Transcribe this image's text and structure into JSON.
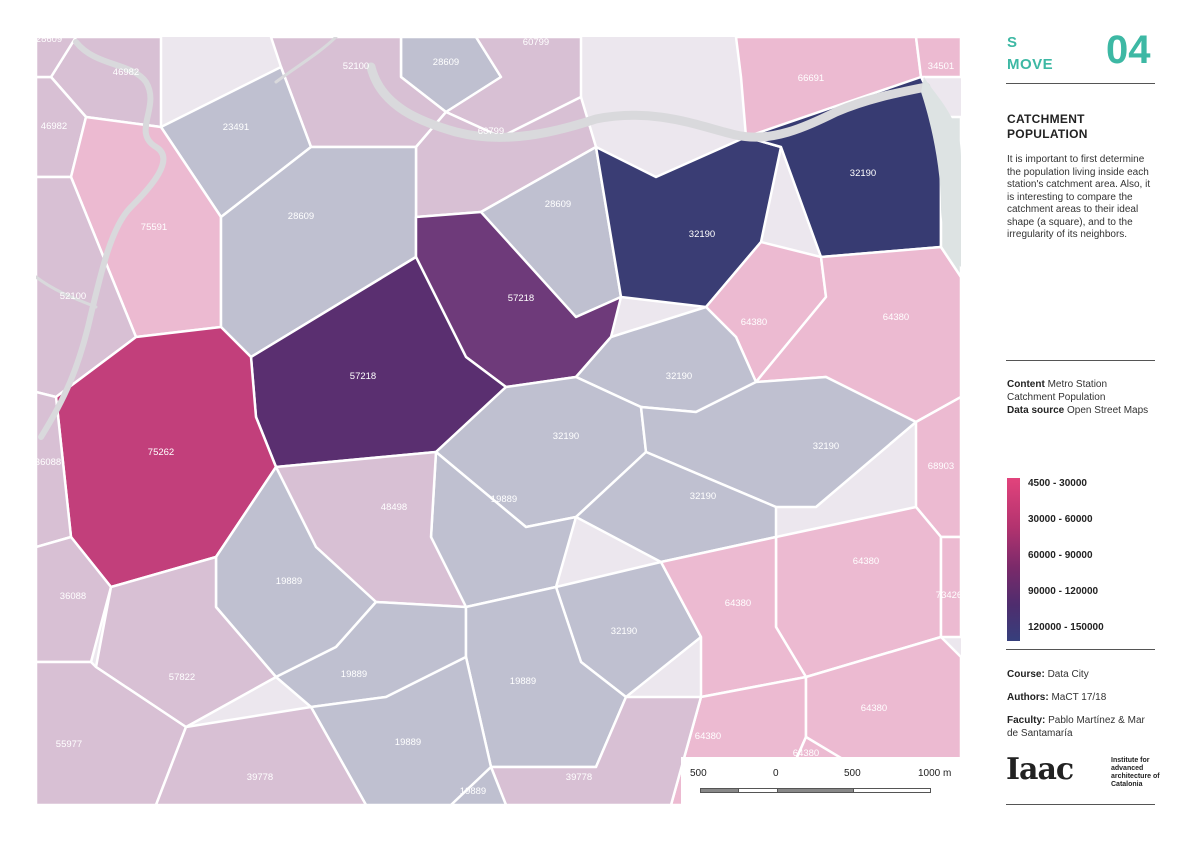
{
  "header": {
    "brand_line1": "S",
    "brand_line2": "MOVE",
    "page_number": "04"
  },
  "section": {
    "title": "CATCHMENT POPULATION",
    "description": "It is important to first determine the population living inside each station's catchment area. Also, it is interesting to compare the catchment areas to their ideal shape (a square), and to the irregularity of its neighbors."
  },
  "meta": {
    "content_label": "Content",
    "content_value": "Metro Station Catchment Population",
    "source_label": "Data source",
    "source_value": "Open Street Maps"
  },
  "legend": {
    "items": [
      "4500 - 30000",
      "30000 - 60000",
      "60000 - 90000",
      "90000 - 120000",
      "120000 - 150000"
    ],
    "colors": [
      "#e2437c",
      "#b3336f",
      "#7a2a6a",
      "#4e2d6e",
      "#363f7c"
    ]
  },
  "credits": {
    "course_label": "Course:",
    "course_value": "Data City",
    "authors_label": "Authors:",
    "authors_value": "MaCT 17/18",
    "faculty_label": "Faculty:",
    "faculty_value": "Pablo Martínez & Mar de Santamaría"
  },
  "logo": {
    "mark": "Iaac",
    "text": "Institute for advanced architecture of Catalonia"
  },
  "scale": {
    "labels": [
      "500",
      "0",
      "500",
      "1000 m"
    ]
  },
  "map": {
    "cells": [
      {
        "label": "28609",
        "fill": "#bfc0d0"
      },
      {
        "label": "52100",
        "fill": "#d8c0d4"
      },
      {
        "label": "23491",
        "fill": "#bfc0d0"
      },
      {
        "label": "46982",
        "fill": "#d8c0d4"
      },
      {
        "label": "46982",
        "fill": "#d8c0d4"
      },
      {
        "label": "60799",
        "fill": "#d8c0d4"
      },
      {
        "label": "60799",
        "fill": "#d8c0d4"
      },
      {
        "label": "66691",
        "fill": "#ecbad1"
      },
      {
        "label": "34501",
        "fill": "#ecbad1"
      },
      {
        "label": "75591",
        "fill": "#ecbad1"
      },
      {
        "label": "28609",
        "fill": "#bfc0d0"
      },
      {
        "label": "28609",
        "fill": "#bfc0d0"
      },
      {
        "label": "52100",
        "fill": "#d8c0d4"
      },
      {
        "label": "57218",
        "fill": "#6e3a7a"
      },
      {
        "label": "57218",
        "fill": "#5a2f70"
      },
      {
        "label": "32190",
        "fill": "#3a3d74"
      },
      {
        "label": "32190",
        "fill": "#373b72"
      },
      {
        "label": "75262",
        "fill": "#c23f7b"
      },
      {
        "label": "64380",
        "fill": "#ecbad1"
      },
      {
        "label": "64380",
        "fill": "#ecbad1"
      },
      {
        "label": "32190",
        "fill": "#bfc0d0"
      },
      {
        "label": "32190",
        "fill": "#bfc0d0"
      },
      {
        "label": "32190",
        "fill": "#bfc0d0"
      },
      {
        "label": "32190",
        "fill": "#bfc0d0"
      },
      {
        "label": "19889",
        "fill": "#bfc0d0"
      },
      {
        "label": "48498",
        "fill": "#d8c0d4"
      },
      {
        "label": "68903",
        "fill": "#ecbad1"
      },
      {
        "label": "36088",
        "fill": "#d8c0d4"
      },
      {
        "label": "36088",
        "fill": "#d8c0d4"
      },
      {
        "label": "19889",
        "fill": "#bfc0d0"
      },
      {
        "label": "32190",
        "fill": "#bfc0d0"
      },
      {
        "label": "64380",
        "fill": "#ecbad1"
      },
      {
        "label": "64380",
        "fill": "#ecbad1"
      },
      {
        "label": "73426",
        "fill": "#ecbad1"
      },
      {
        "label": "57822",
        "fill": "#d8c0d4"
      },
      {
        "label": "19889",
        "fill": "#bfc0d0"
      },
      {
        "label": "19889",
        "fill": "#bfc0d0"
      },
      {
        "label": "55977",
        "fill": "#d8c0d4"
      },
      {
        "label": "19889",
        "fill": "#bfc0d0"
      },
      {
        "label": "64380",
        "fill": "#ecbad1"
      },
      {
        "label": "64380",
        "fill": "#ecbad1"
      },
      {
        "label": "64380",
        "fill": "#ecbad1"
      },
      {
        "label": "39778",
        "fill": "#d8c0d4"
      },
      {
        "label": "39778",
        "fill": "#d8c0d4"
      },
      {
        "label": "19889",
        "fill": "#bfc0d0"
      },
      {
        "label": "28609",
        "fill": "#d8c0d4"
      },
      {
        "label": "1804",
        "fill": "#dde3e3"
      }
    ]
  }
}
